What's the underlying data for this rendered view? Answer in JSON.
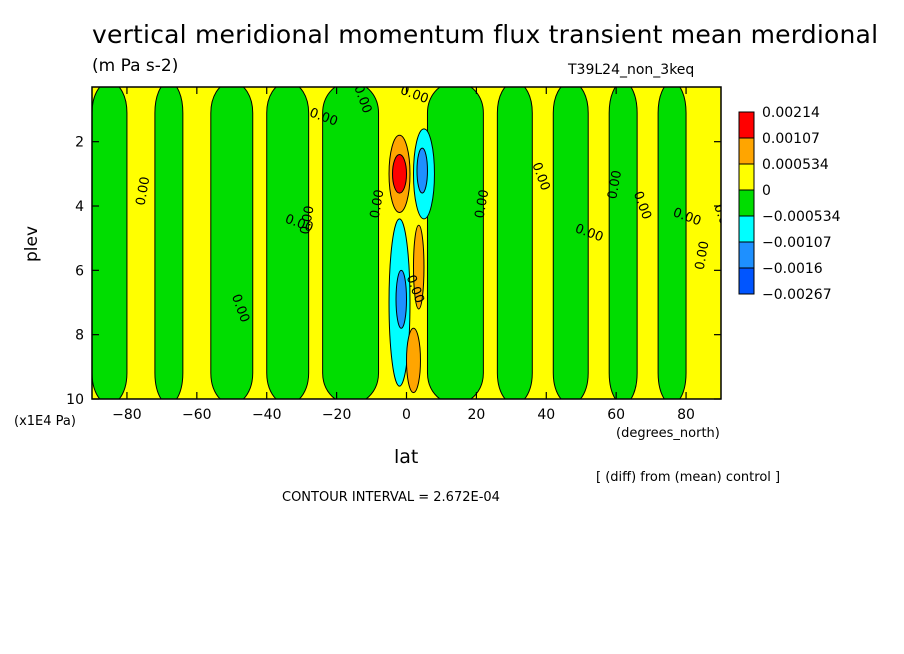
{
  "chart_data": {
    "type": "heatmap",
    "title": "vertical meridional momentum flux transient mean merdional",
    "units": "(m Pa s-2)",
    "experiment": "T39L24_non_3keq",
    "xlabel": "lat",
    "xunits": "(degrees_north)",
    "ylabel": "plev",
    "yunits": "(x1E4 Pa)",
    "xlim": [
      -90,
      90
    ],
    "ylim": [
      10,
      0.3
    ],
    "y_inverted": true,
    "xticks": [
      -80,
      -60,
      -40,
      -20,
      0,
      20,
      40,
      60,
      80
    ],
    "yticks": [
      2,
      4,
      6,
      8,
      10
    ],
    "contour_interval_text": "CONTOUR INTERVAL = 2.672E-04",
    "diff_note": "[ (diff) from (mean) control ]",
    "contour_label": "0.00",
    "legend": {
      "placement": "right",
      "levels": [
        "0.00214",
        "0.00107",
        "0.000534",
        "0",
        "−0.000534",
        "−0.00107",
        "−0.0016",
        "−0.00267"
      ],
      "colors": [
        "#ff0000",
        "#ffa500",
        "#ffff00",
        "#00dd00",
        "#00ffff",
        "#1e90ff",
        "#0055ff"
      ]
    },
    "background_fill_color": "#ffff00",
    "regions": [
      {
        "sign": "negative",
        "color": "#00dd00",
        "lat": [
          -90,
          -80
        ],
        "plev": [
          0.3,
          10
        ]
      },
      {
        "sign": "negative",
        "color": "#00dd00",
        "lat": [
          -72,
          -64
        ],
        "plev": [
          0.3,
          10
        ]
      },
      {
        "sign": "negative",
        "color": "#00dd00",
        "lat": [
          -56,
          -44
        ],
        "plev": [
          0.3,
          10
        ]
      },
      {
        "sign": "negative",
        "color": "#00dd00",
        "lat": [
          -40,
          -28
        ],
        "plev": [
          0.3,
          10
        ]
      },
      {
        "sign": "negative",
        "color": "#00dd00",
        "lat": [
          -24,
          -8
        ],
        "plev": [
          0.3,
          10
        ]
      },
      {
        "sign": "negative",
        "color": "#00dd00",
        "lat": [
          6,
          22
        ],
        "plev": [
          0.3,
          10
        ]
      },
      {
        "sign": "negative",
        "color": "#00dd00",
        "lat": [
          26,
          36
        ],
        "plev": [
          0.3,
          10
        ]
      },
      {
        "sign": "negative",
        "color": "#00dd00",
        "lat": [
          42,
          52
        ],
        "plev": [
          0.3,
          10
        ]
      },
      {
        "sign": "negative",
        "color": "#00dd00",
        "lat": [
          58,
          66
        ],
        "plev": [
          0.3,
          10
        ]
      },
      {
        "sign": "negative",
        "color": "#00dd00",
        "lat": [
          72,
          80
        ],
        "plev": [
          0.3,
          10
        ]
      },
      {
        "sign": "positive",
        "color": "#ffa500",
        "lat": [
          -5,
          1
        ],
        "plev": [
          1.8,
          4.2
        ]
      },
      {
        "sign": "positive",
        "color": "#ff0000",
        "lat": [
          -4,
          0
        ],
        "plev": [
          2.4,
          3.6
        ]
      },
      {
        "sign": "negative",
        "color": "#00ffff",
        "lat": [
          2,
          8
        ],
        "plev": [
          1.6,
          4.4
        ]
      },
      {
        "sign": "negative",
        "color": "#1e90ff",
        "lat": [
          3,
          6
        ],
        "plev": [
          2.2,
          3.6
        ]
      },
      {
        "sign": "negative",
        "color": "#00ffff",
        "lat": [
          -5,
          1
        ],
        "plev": [
          4.4,
          9.6
        ]
      },
      {
        "sign": "negative",
        "color": "#1e90ff",
        "lat": [
          -3,
          0
        ],
        "plev": [
          6.0,
          7.8
        ]
      },
      {
        "sign": "positive",
        "color": "#ffa500",
        "lat": [
          2,
          5
        ],
        "plev": [
          4.6,
          7.2
        ]
      },
      {
        "sign": "positive",
        "color": "#ffa500",
        "lat": [
          0,
          4
        ],
        "plev": [
          7.8,
          9.8
        ]
      }
    ]
  }
}
